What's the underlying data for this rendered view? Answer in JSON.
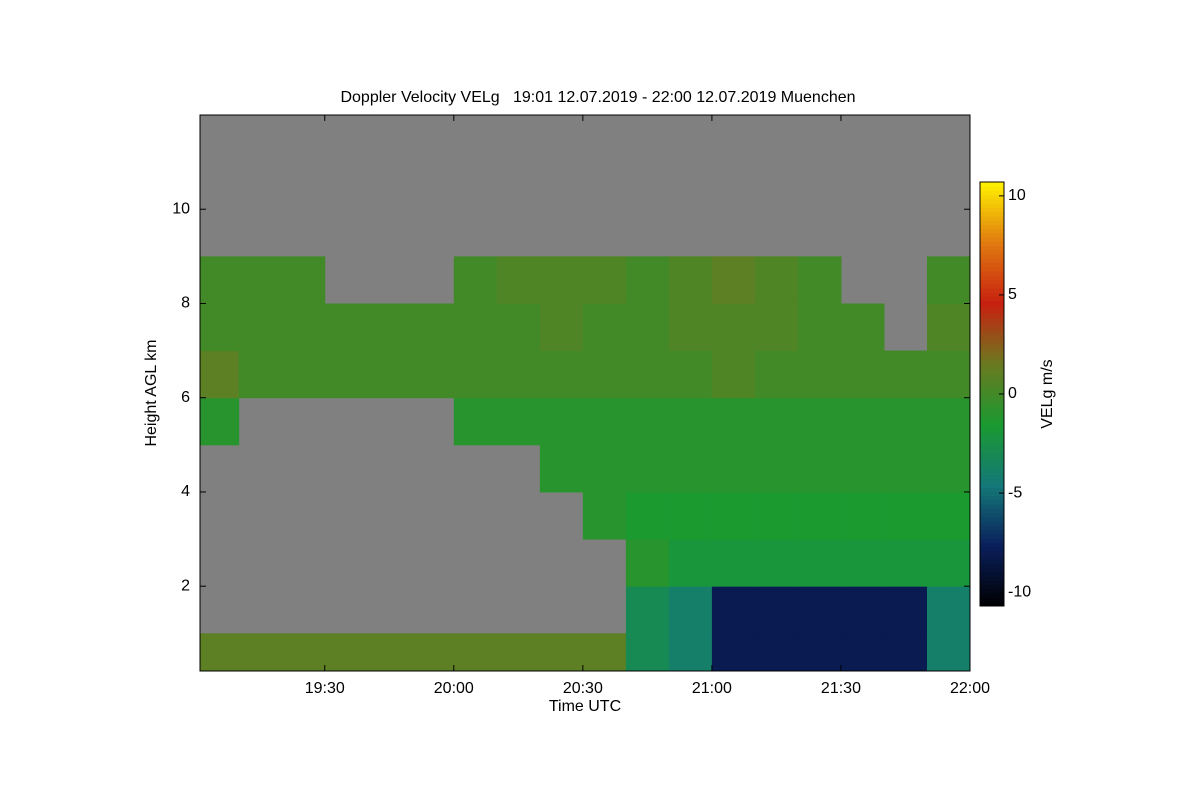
{
  "chart_data": {
    "type": "heatmap",
    "title": "Doppler Velocity VELg   19:01 12.07.2019 - 22:00 12.07.2019 Muenchen",
    "x_label": "Time UTC",
    "y_label": "Height AGL km",
    "colorbar_label": "VELg m/s",
    "xlim": [
      1141,
      1320
    ],
    "xticks": [
      {
        "value": 1170,
        "label": "19:30"
      },
      {
        "value": 1200,
        "label": "20:00"
      },
      {
        "value": 1230,
        "label": "20:30"
      },
      {
        "value": 1260,
        "label": "21:00"
      },
      {
        "value": 1290,
        "label": "21:30"
      },
      {
        "value": 1320,
        "label": "22:00"
      }
    ],
    "ylim": [
      0.2,
      12
    ],
    "yticks": [
      2,
      4,
      6,
      8,
      10
    ],
    "x_edges": [
      1141,
      1150,
      1160,
      1170,
      1180,
      1190,
      1200,
      1210,
      1220,
      1230,
      1240,
      1250,
      1260,
      1270,
      1280,
      1290,
      1300,
      1310,
      1320
    ],
    "y_edges": [
      0.2,
      1,
      2,
      3,
      4,
      5,
      6,
      7,
      8,
      9
    ],
    "z": [
      [
        1,
        1,
        1,
        1,
        1,
        1,
        1,
        1,
        1,
        1,
        -3,
        -4,
        -8,
        -8,
        -8,
        -8,
        -8,
        -4
      ],
      [
        null,
        null,
        null,
        null,
        null,
        null,
        null,
        null,
        null,
        null,
        -3,
        -4,
        -8,
        -8,
        -8,
        -8,
        -8,
        -4
      ],
      [
        null,
        null,
        null,
        null,
        null,
        null,
        null,
        null,
        null,
        null,
        -1,
        -2,
        -2,
        -2,
        -2,
        -2,
        -2,
        -2
      ],
      [
        null,
        null,
        null,
        null,
        null,
        null,
        null,
        null,
        null,
        -1,
        -1.5,
        -1.5,
        -1.5,
        -1.5,
        -1.5,
        -1.5,
        -1.5,
        -1.5
      ],
      [
        null,
        null,
        null,
        null,
        null,
        null,
        null,
        null,
        -1,
        -1,
        -1,
        -1,
        -1,
        -1,
        -1,
        -1,
        -1,
        -1
      ],
      [
        -1,
        null,
        null,
        null,
        null,
        null,
        -1,
        -1,
        -1,
        -1,
        -1,
        -1,
        -1,
        -1,
        -1,
        -1,
        -1,
        -1
      ],
      [
        1,
        0,
        0,
        0,
        0,
        0,
        0,
        0,
        0,
        0,
        0,
        0,
        0.5,
        0,
        0,
        0,
        0,
        0
      ],
      [
        0,
        0,
        0,
        0,
        0,
        0,
        0,
        0,
        0.5,
        0,
        0,
        0.5,
        0.5,
        0.5,
        0,
        0,
        null,
        0.5
      ],
      [
        0,
        0,
        0,
        null,
        null,
        null,
        0,
        0.5,
        0.5,
        0.5,
        0,
        0.5,
        1,
        0.5,
        0,
        null,
        null,
        0
      ]
    ],
    "clim": [
      -10.7,
      10.7
    ],
    "colormap": [
      "#000000",
      "#0a1f5c",
      "#147878",
      "#1a9a30",
      "#6a7a20",
      "#c82010",
      "#e07a10",
      "#fff200"
    ],
    "nan_color": "#808080",
    "colorbar_ticks": [
      -10,
      -5,
      0,
      5,
      10
    ]
  }
}
